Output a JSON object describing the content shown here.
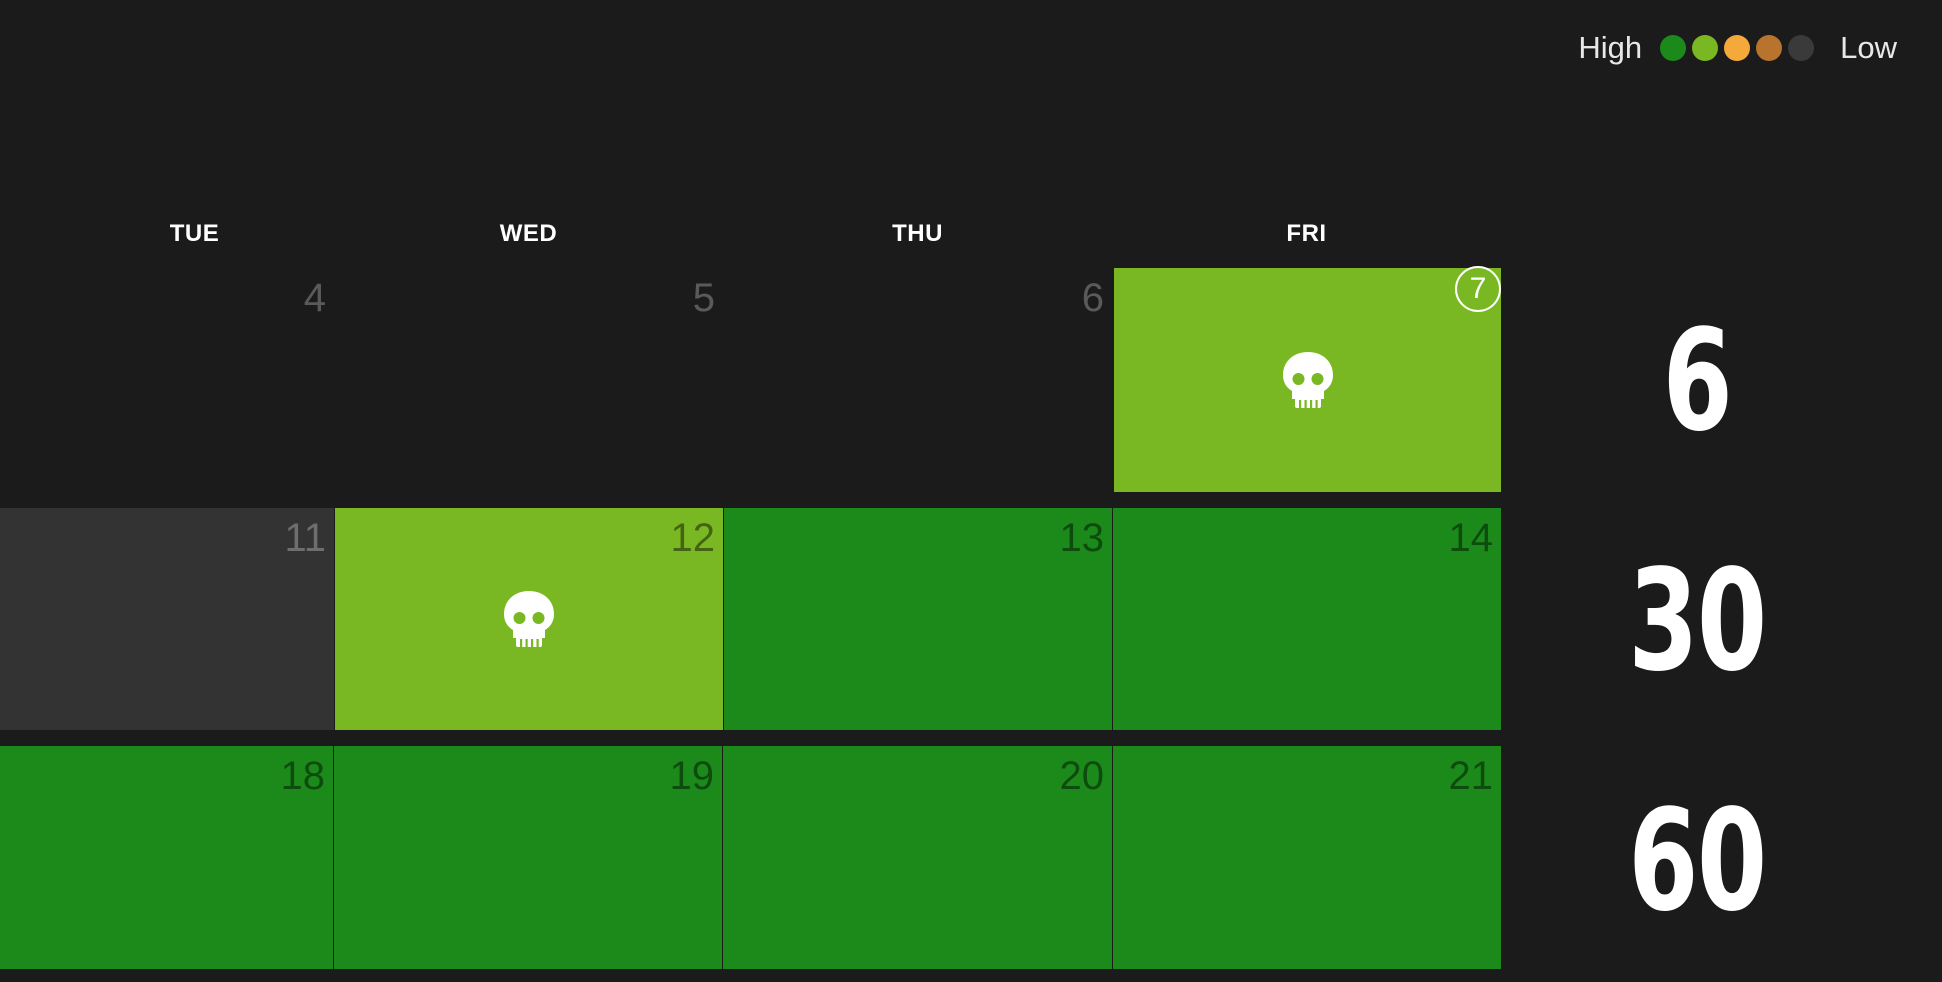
{
  "legend": {
    "high_label": "High",
    "low_label": "Low",
    "dots": [
      "#1b8a1b",
      "#7ab823",
      "#f6a93b",
      "#b8732c",
      "#3a3a3a"
    ]
  },
  "colors": {
    "background": "#1b1b1b",
    "green": "#1b8a1b",
    "lime": "#7ab823",
    "gray": "#333333"
  },
  "weekdays": [
    "TUE",
    "WED",
    "THU",
    "FRI"
  ],
  "weeks": [
    {
      "total": "6",
      "days": [
        {
          "num": "4",
          "state": "empty"
        },
        {
          "num": "5",
          "state": "empty"
        },
        {
          "num": "6",
          "state": "empty"
        },
        {
          "num": "7",
          "state": "lime",
          "skull": true,
          "today": true
        }
      ]
    },
    {
      "total": "30",
      "days": [
        {
          "num": "11",
          "state": "gray"
        },
        {
          "num": "12",
          "state": "lime",
          "skull": true
        },
        {
          "num": "13",
          "state": "green"
        },
        {
          "num": "14",
          "state": "green"
        }
      ]
    },
    {
      "total": "60",
      "days": [
        {
          "num": "18",
          "state": "green"
        },
        {
          "num": "19",
          "state": "green"
        },
        {
          "num": "20",
          "state": "green"
        },
        {
          "num": "21",
          "state": "green"
        }
      ]
    }
  ]
}
